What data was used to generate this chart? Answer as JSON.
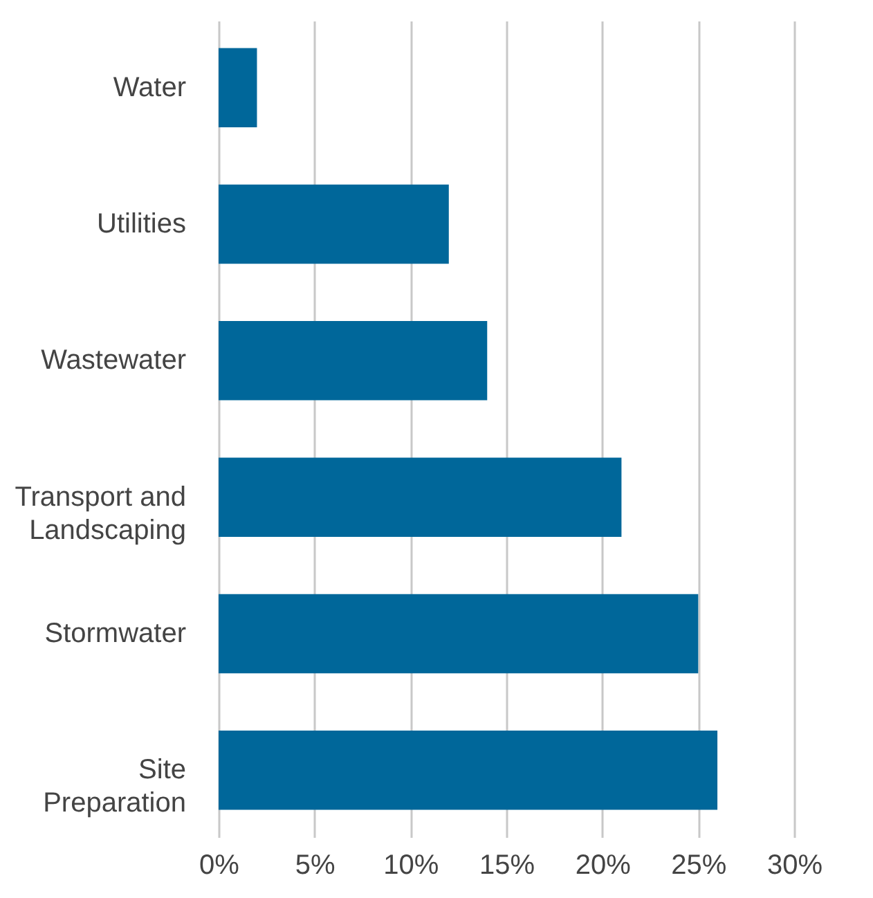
{
  "chart_data": {
    "type": "bar",
    "orientation": "horizontal",
    "categories": [
      "Water",
      "Utilities",
      "Wastewater",
      "Transport and\nLandscaping",
      "Stormwater",
      "Site\nPreparation"
    ],
    "values": [
      2,
      12,
      14,
      21,
      25,
      26
    ],
    "color": "#00679a",
    "xlim": [
      0,
      30
    ],
    "xticks": [
      {
        "value": 0,
        "label": "0%"
      },
      {
        "value": 5,
        "label": "5%"
      },
      {
        "value": 10,
        "label": "10%"
      },
      {
        "value": 15,
        "label": "15%"
      },
      {
        "value": 20,
        "label": "20%"
      },
      {
        "value": 25,
        "label": "25%"
      },
      {
        "value": 30,
        "label": "30%"
      }
    ],
    "grid": "x"
  }
}
